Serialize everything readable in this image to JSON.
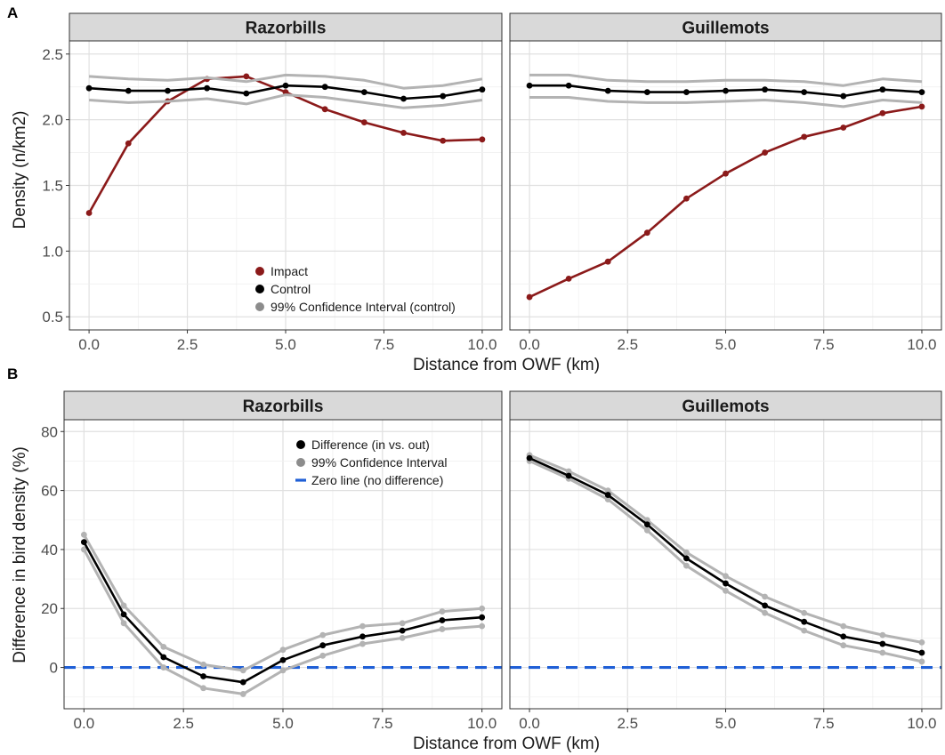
{
  "figure": {
    "panel_a_tag": "A",
    "panel_b_tag": "B"
  },
  "colors": {
    "impact": "#8b1a1a",
    "control": "#000000",
    "ci": "#b3b3b3",
    "zero_line": "#1f5fd6",
    "strip_bg": "#d9d9d9",
    "grid_major": "#e0e0e0",
    "grid_minor": "#f0f0f0"
  },
  "chart_data": [
    {
      "type": "line",
      "panel": "A",
      "facet": "Razorbills",
      "xlabel": "Distance from OWF (km)",
      "ylabel": "Density (n/km2)",
      "xlim": [
        -0.5,
        10.5
      ],
      "ylim": [
        0.4,
        2.6
      ],
      "xticks": [
        "0.0",
        "2.5",
        "5.0",
        "7.5",
        "10.0"
      ],
      "yticks": [
        "0.5",
        "1.0",
        "1.5",
        "2.0",
        "2.5"
      ],
      "grid": true,
      "legend_position": "bottom-center",
      "x": [
        0,
        1,
        2,
        3,
        4,
        5,
        6,
        7,
        8,
        9,
        10
      ],
      "series": [
        {
          "name": "Impact",
          "key": "impact",
          "points": true,
          "values": [
            1.29,
            1.82,
            2.14,
            2.31,
            2.33,
            2.21,
            2.08,
            1.98,
            1.9,
            1.84,
            1.85
          ]
        },
        {
          "name": "Control",
          "key": "control",
          "points": true,
          "values": [
            2.24,
            2.22,
            2.22,
            2.24,
            2.2,
            2.26,
            2.25,
            2.21,
            2.16,
            2.18,
            2.23
          ]
        },
        {
          "name": "99% Confidence Interval (control)",
          "key": "ci",
          "points": false,
          "values": [
            2.33,
            2.31,
            2.3,
            2.32,
            2.29,
            2.34,
            2.33,
            2.3,
            2.24,
            2.26,
            2.31
          ]
        },
        {
          "name": "",
          "key": "ci",
          "points": false,
          "values": [
            2.15,
            2.13,
            2.14,
            2.16,
            2.12,
            2.19,
            2.17,
            2.13,
            2.09,
            2.11,
            2.15
          ]
        }
      ]
    },
    {
      "type": "line",
      "panel": "A",
      "facet": "Guillemots",
      "xlabel": "Distance from OWF (km)",
      "ylabel": "Density (n/km2)",
      "xlim": [
        -0.5,
        10.5
      ],
      "ylim": [
        0.4,
        2.6
      ],
      "xticks": [
        "0.0",
        "2.5",
        "5.0",
        "7.5",
        "10.0"
      ],
      "yticks": [
        "0.5",
        "1.0",
        "1.5",
        "2.0",
        "2.5"
      ],
      "grid": true,
      "x": [
        0,
        1,
        2,
        3,
        4,
        5,
        6,
        7,
        8,
        9,
        10
      ],
      "series": [
        {
          "name": "Impact",
          "key": "impact",
          "points": true,
          "values": [
            0.65,
            0.79,
            0.92,
            1.14,
            1.4,
            1.59,
            1.75,
            1.87,
            1.94,
            2.05,
            2.1
          ]
        },
        {
          "name": "Control",
          "key": "control",
          "points": true,
          "values": [
            2.26,
            2.26,
            2.22,
            2.21,
            2.21,
            2.22,
            2.23,
            2.21,
            2.18,
            2.23,
            2.21
          ]
        },
        {
          "name": "99% Confidence Interval (control)",
          "key": "ci",
          "points": false,
          "values": [
            2.34,
            2.34,
            2.3,
            2.29,
            2.29,
            2.3,
            2.3,
            2.29,
            2.26,
            2.31,
            2.29
          ]
        },
        {
          "name": "",
          "key": "ci",
          "points": false,
          "values": [
            2.17,
            2.17,
            2.14,
            2.13,
            2.13,
            2.14,
            2.15,
            2.13,
            2.1,
            2.15,
            2.13
          ]
        }
      ]
    },
    {
      "type": "line",
      "panel": "B",
      "facet": "Razorbills",
      "xlabel": "Distance from OWF (km)",
      "ylabel": "Difference in bird density (%)",
      "xlim": [
        -0.5,
        10.5
      ],
      "ylim": [
        -14,
        84
      ],
      "xticks": [
        "0.0",
        "2.5",
        "5.0",
        "7.5",
        "10.0"
      ],
      "yticks": [
        "0",
        "20",
        "40",
        "60",
        "80"
      ],
      "grid": true,
      "legend_position": "top-right",
      "zero_line": 0,
      "zero_line_label": "Zero line (no difference)",
      "x": [
        0,
        1,
        2,
        3,
        4,
        5,
        6,
        7,
        8,
        9,
        10
      ],
      "series": [
        {
          "name": "99% Confidence Interval",
          "key": "ci",
          "points": true,
          "values": [
            45,
            21,
            7,
            1,
            -1,
            6,
            11,
            14,
            15,
            19,
            20
          ]
        },
        {
          "name": "",
          "key": "ci",
          "points": true,
          "values": [
            40,
            15,
            0,
            -7,
            -9,
            -1,
            4,
            8,
            10,
            13,
            14
          ]
        },
        {
          "name": "Difference (in vs. out)",
          "key": "control",
          "points": true,
          "values": [
            42.5,
            18,
            3.5,
            -3,
            -5,
            2.5,
            7.5,
            10.5,
            12.5,
            16,
            17
          ]
        }
      ]
    },
    {
      "type": "line",
      "panel": "B",
      "facet": "Guillemots",
      "xlabel": "Distance from OWF (km)",
      "ylabel": "Difference in bird density (%)",
      "xlim": [
        -0.5,
        10.5
      ],
      "ylim": [
        -14,
        84
      ],
      "xticks": [
        "0.0",
        "2.5",
        "5.0",
        "7.5",
        "10.0"
      ],
      "yticks": [
        "0",
        "20",
        "40",
        "60",
        "80"
      ],
      "grid": true,
      "zero_line": 0,
      "x": [
        0,
        1,
        2,
        3,
        4,
        5,
        6,
        7,
        8,
        9,
        10
      ],
      "series": [
        {
          "name": "99% Confidence Interval",
          "key": "ci",
          "points": true,
          "values": [
            72,
            66.5,
            60,
            50,
            39,
            31,
            24,
            18.5,
            14,
            11,
            8.5
          ]
        },
        {
          "name": "",
          "key": "ci",
          "points": true,
          "values": [
            70,
            64,
            57,
            46.5,
            34.5,
            26,
            18.5,
            12.5,
            7.5,
            5,
            2
          ]
        },
        {
          "name": "Difference (in vs. out)",
          "key": "control",
          "points": true,
          "values": [
            71,
            65,
            58.5,
            48.5,
            37,
            28.5,
            21,
            15.5,
            10.5,
            8,
            5
          ]
        }
      ]
    }
  ]
}
